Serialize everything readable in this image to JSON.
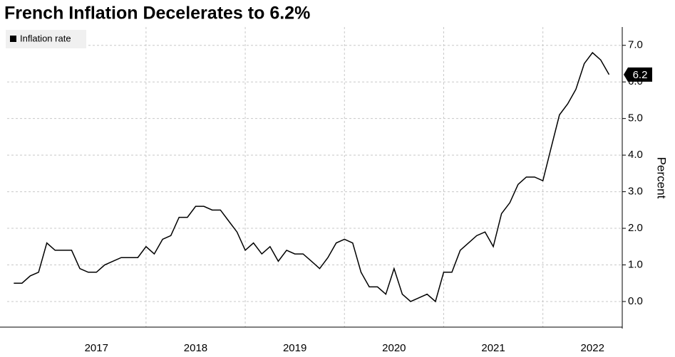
{
  "chart_data": {
    "type": "line",
    "title": "French Inflation Decelerates to 6.2%",
    "y_label": "Percent",
    "x": [
      2016.667,
      2016.75,
      2016.833,
      2016.917,
      2017.0,
      2017.083,
      2017.167,
      2017.25,
      2017.333,
      2017.417,
      2017.5,
      2017.583,
      2017.667,
      2017.75,
      2017.833,
      2017.917,
      2018.0,
      2018.083,
      2018.167,
      2018.25,
      2018.333,
      2018.417,
      2018.5,
      2018.583,
      2018.667,
      2018.75,
      2018.833,
      2018.917,
      2019.0,
      2019.083,
      2019.167,
      2019.25,
      2019.333,
      2019.417,
      2019.5,
      2019.583,
      2019.667,
      2019.75,
      2019.833,
      2019.917,
      2020.0,
      2020.083,
      2020.167,
      2020.25,
      2020.333,
      2020.417,
      2020.5,
      2020.583,
      2020.667,
      2020.75,
      2020.833,
      2020.917,
      2021.0,
      2021.083,
      2021.167,
      2021.25,
      2021.333,
      2021.417,
      2021.5,
      2021.583,
      2021.667,
      2021.75,
      2021.833,
      2021.917,
      2022.0,
      2022.083,
      2022.167,
      2022.25,
      2022.333,
      2022.417,
      2022.5,
      2022.583,
      2022.667
    ],
    "series": [
      {
        "name": "Inflation rate",
        "color": "#000000",
        "values": [
          0.5,
          0.5,
          0.7,
          0.8,
          1.6,
          1.4,
          1.4,
          1.4,
          0.9,
          0.8,
          0.8,
          1.0,
          1.1,
          1.2,
          1.2,
          1.2,
          1.5,
          1.3,
          1.7,
          1.8,
          2.3,
          2.3,
          2.6,
          2.6,
          2.5,
          2.5,
          2.2,
          1.9,
          1.4,
          1.6,
          1.3,
          1.5,
          1.1,
          1.4,
          1.3,
          1.3,
          1.1,
          0.9,
          1.2,
          1.6,
          1.7,
          1.6,
          0.8,
          0.4,
          0.4,
          0.2,
          0.9,
          0.2,
          0.0,
          0.1,
          0.2,
          0.0,
          0.8,
          0.8,
          1.4,
          1.6,
          1.8,
          1.9,
          1.5,
          2.4,
          2.7,
          3.2,
          3.4,
          3.4,
          3.3,
          4.2,
          5.1,
          5.4,
          5.8,
          6.5,
          6.8,
          6.6,
          6.2
        ]
      }
    ],
    "xlim": [
      2016.6,
      2022.8
    ],
    "xticks": [
      {
        "value": 2017.5,
        "label": "2017"
      },
      {
        "value": 2018.5,
        "label": "2018"
      },
      {
        "value": 2019.5,
        "label": "2019"
      },
      {
        "value": 2020.5,
        "label": "2020"
      },
      {
        "value": 2021.5,
        "label": "2021"
      },
      {
        "value": 2022.5,
        "label": "2022"
      }
    ],
    "x_gridlines": [
      2018,
      2019,
      2020,
      2021,
      2022
    ],
    "ylim": [
      -0.7,
      7.5
    ],
    "yticks": [
      {
        "value": 0,
        "label": "0.0"
      },
      {
        "value": 1,
        "label": "1.0"
      },
      {
        "value": 2,
        "label": "2.0"
      },
      {
        "value": 3,
        "label": "3.0"
      },
      {
        "value": 4,
        "label": "4.0"
      },
      {
        "value": 5,
        "label": "5.0"
      },
      {
        "value": 6,
        "label": "6.0"
      },
      {
        "value": 7,
        "label": "7.0"
      }
    ],
    "grid": true,
    "legend": "top-left"
  }
}
